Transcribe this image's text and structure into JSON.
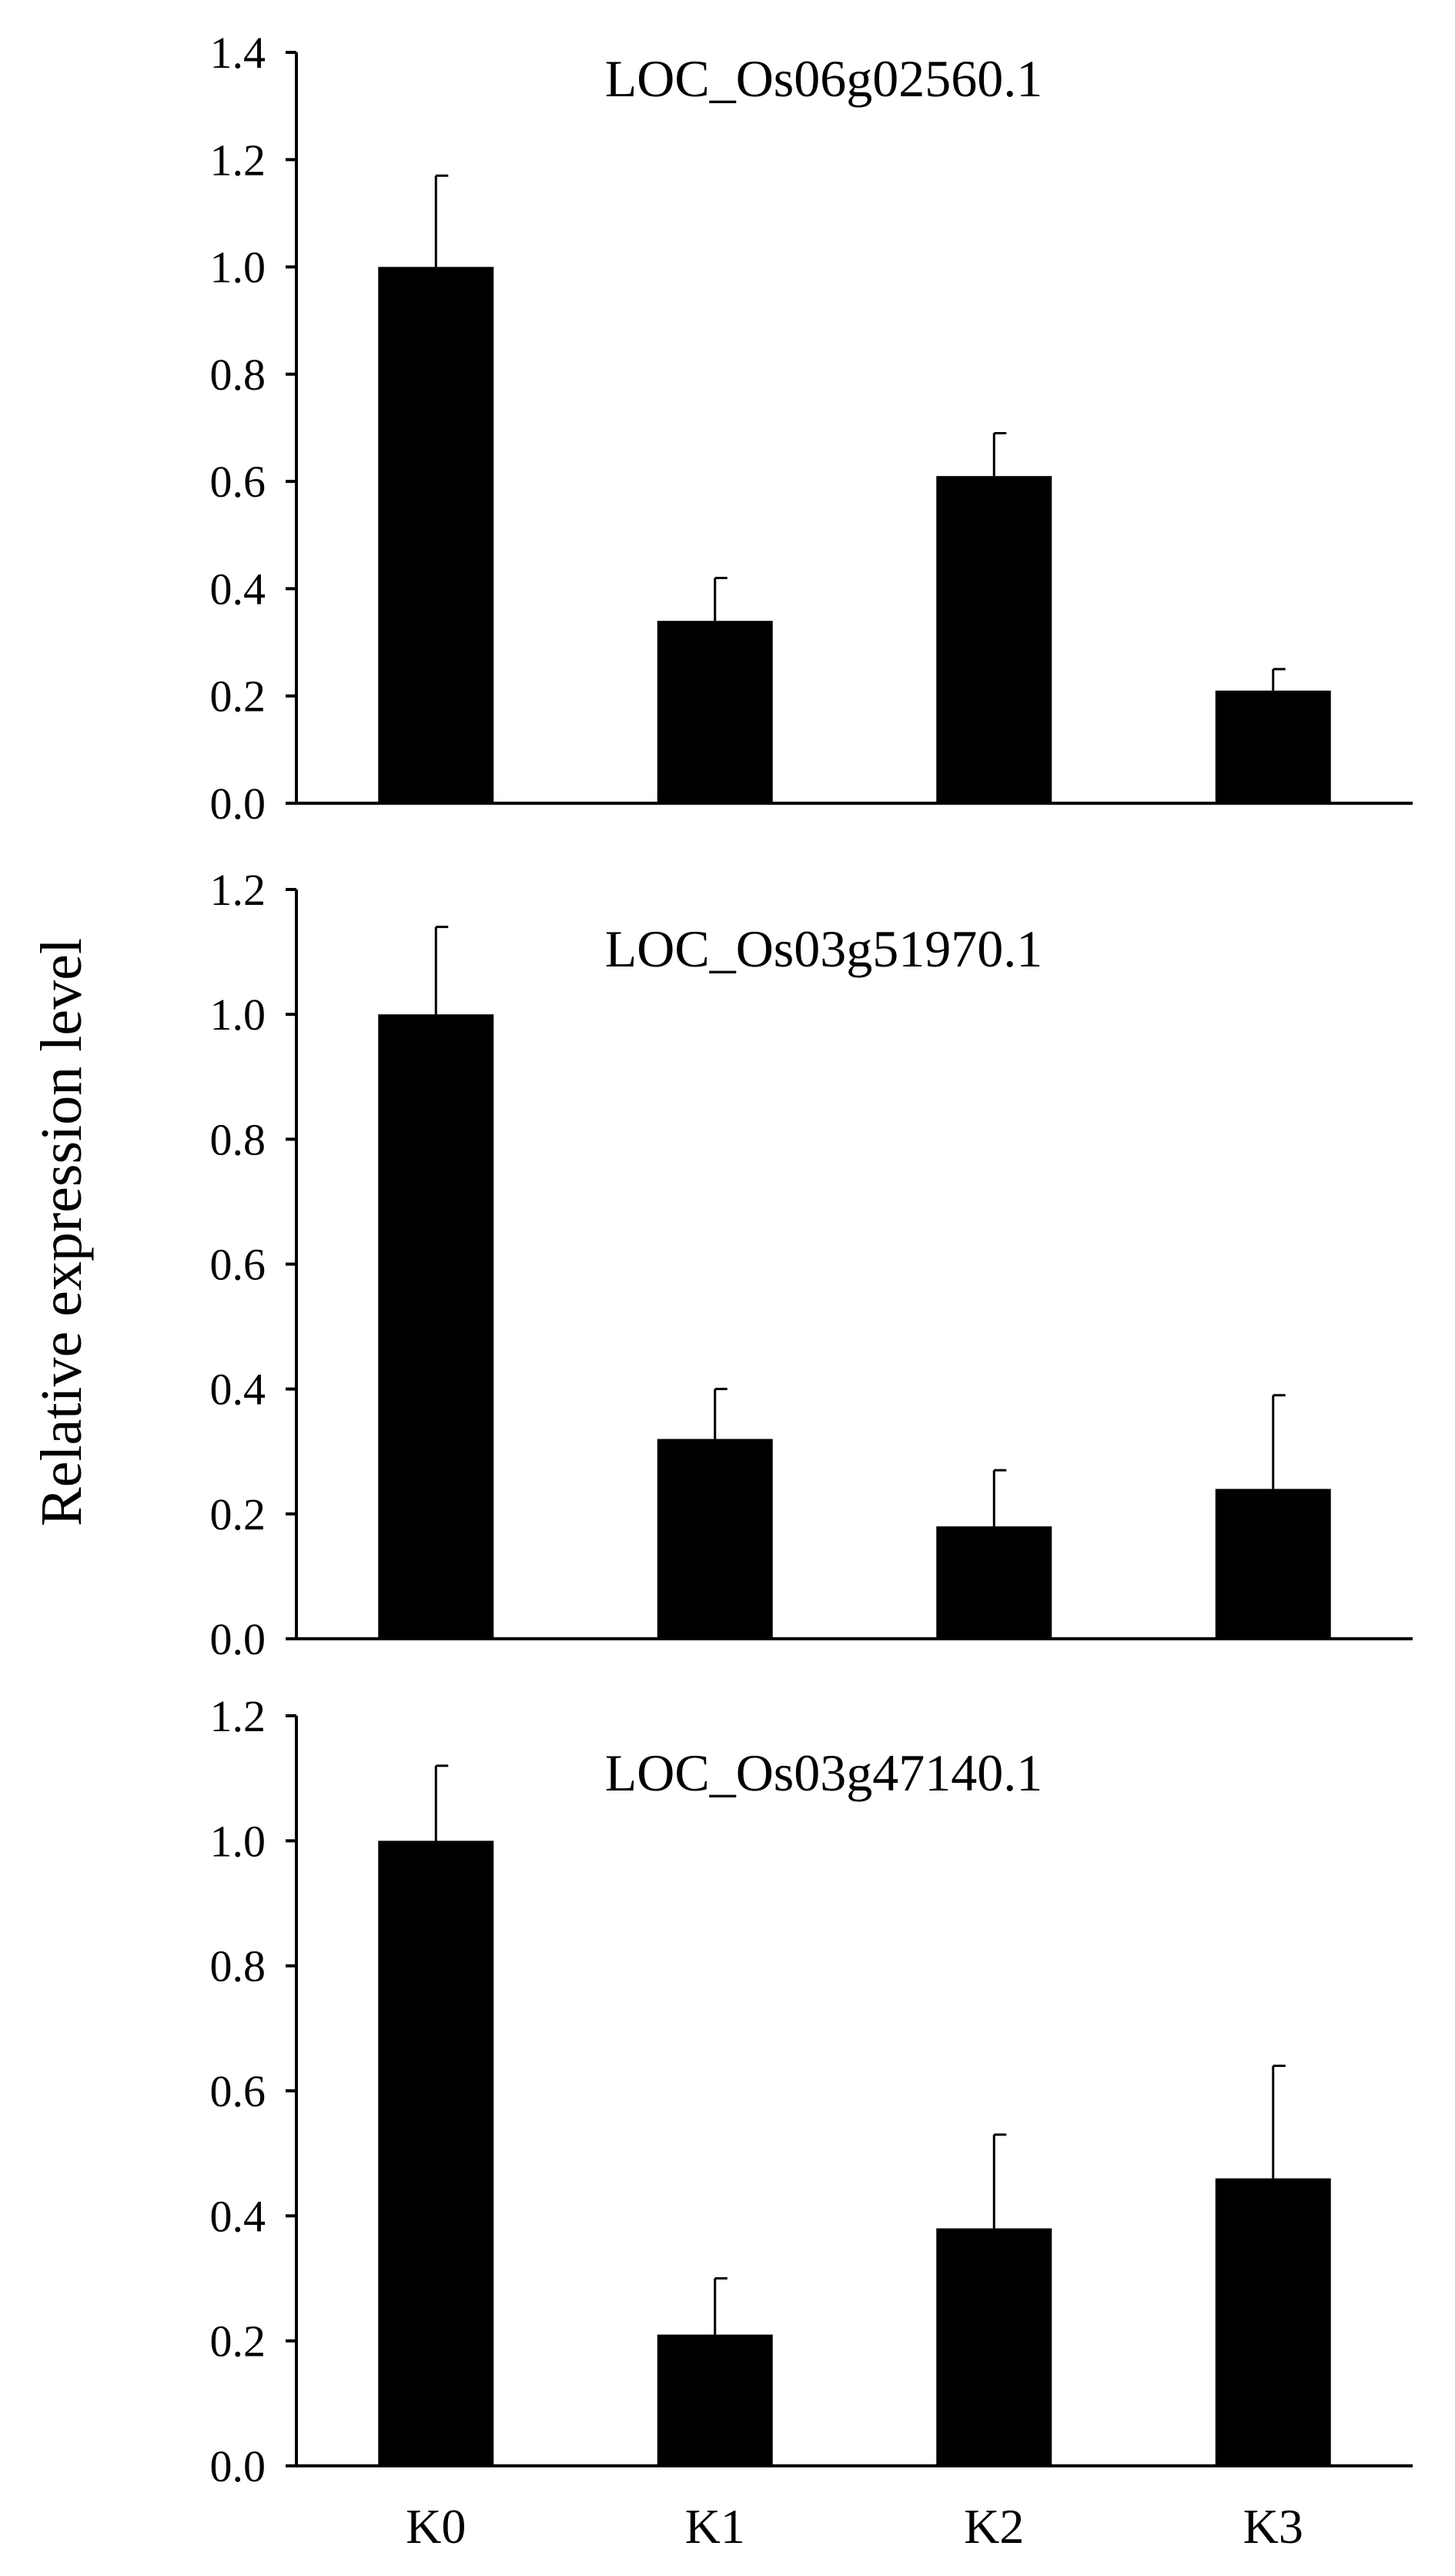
{
  "figure": {
    "ylabel": "Relative expression level",
    "categories": [
      "K0",
      "K1",
      "K2",
      "K3"
    ]
  },
  "chart_data": [
    {
      "type": "bar",
      "title": "LOC_Os06g02560.1",
      "categories": [
        "K0",
        "K1",
        "K2",
        "K3"
      ],
      "values": [
        1.0,
        0.34,
        0.61,
        0.21
      ],
      "errors": [
        0.17,
        0.08,
        0.08,
        0.04
      ],
      "ylim": [
        0,
        1.4
      ],
      "yticks": [
        "0.0",
        "0.2",
        "0.4",
        "0.6",
        "0.8",
        "1.0",
        "1.2",
        "1.4"
      ],
      "bar_color": "#000000",
      "grid": false
    },
    {
      "type": "bar",
      "title": "LOC_Os03g51970.1",
      "categories": [
        "K0",
        "K1",
        "K2",
        "K3"
      ],
      "values": [
        1.0,
        0.32,
        0.18,
        0.24
      ],
      "errors": [
        0.14,
        0.08,
        0.09,
        0.15
      ],
      "ylim": [
        0,
        1.2
      ],
      "yticks": [
        "0.0",
        "0.2",
        "0.4",
        "0.6",
        "0.8",
        "1.0",
        "1.2"
      ],
      "bar_color": "#000000",
      "grid": false
    },
    {
      "type": "bar",
      "title": "LOC_Os03g47140.1",
      "categories": [
        "K0",
        "K1",
        "K2",
        "K3"
      ],
      "values": [
        1.0,
        0.21,
        0.38,
        0.46
      ],
      "errors": [
        0.12,
        0.09,
        0.15,
        0.18
      ],
      "ylim": [
        0,
        1.2
      ],
      "yticks": [
        "0.0",
        "0.2",
        "0.4",
        "0.6",
        "0.8",
        "1.0",
        "1.2"
      ],
      "bar_color": "#000000",
      "grid": false
    }
  ]
}
